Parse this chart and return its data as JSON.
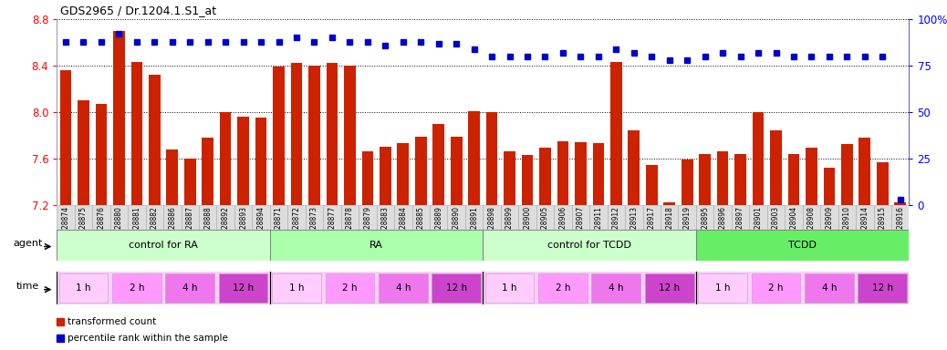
{
  "title": "GDS2965 / Dr.1204.1.S1_at",
  "sample_ids": [
    "GSM228874",
    "GSM228875",
    "GSM228876",
    "GSM228880",
    "GSM228881",
    "GSM228882",
    "GSM228886",
    "GSM228887",
    "GSM228888",
    "GSM228892",
    "GSM228893",
    "GSM228894",
    "GSM228871",
    "GSM228872",
    "GSM228873",
    "GSM228877",
    "GSM228878",
    "GSM228879",
    "GSM228883",
    "GSM228884",
    "GSM228885",
    "GSM228889",
    "GSM228890",
    "GSM228891",
    "GSM228898",
    "GSM228899",
    "GSM228900",
    "GSM228905",
    "GSM228906",
    "GSM228907",
    "GSM228911",
    "GSM228912",
    "GSM228913",
    "GSM228917",
    "GSM228918",
    "GSM228919",
    "GSM228895",
    "GSM228896",
    "GSM228897",
    "GSM228901",
    "GSM228903",
    "GSM228904",
    "GSM228908",
    "GSM228909",
    "GSM228910",
    "GSM228914",
    "GSM228915",
    "GSM228916"
  ],
  "bar_values": [
    8.36,
    8.1,
    8.07,
    8.7,
    8.43,
    8.32,
    7.68,
    7.6,
    7.78,
    8.0,
    7.96,
    7.95,
    8.39,
    8.42,
    8.4,
    8.42,
    8.4,
    7.66,
    7.7,
    7.73,
    7.79,
    7.9,
    7.79,
    8.01,
    8.0,
    7.66,
    7.63,
    7.69,
    7.75,
    7.74,
    7.73,
    8.43,
    7.84,
    7.54,
    7.22,
    7.59,
    7.64,
    7.66,
    7.64,
    8.0,
    7.84,
    7.64,
    7.69,
    7.52,
    7.72,
    7.78,
    7.57,
    7.22
  ],
  "percentile_values": [
    88,
    88,
    88,
    92,
    88,
    88,
    88,
    88,
    88,
    88,
    88,
    88,
    88,
    90,
    88,
    90,
    88,
    88,
    86,
    88,
    88,
    87,
    87,
    84,
    80,
    80,
    80,
    80,
    82,
    80,
    80,
    84,
    82,
    80,
    78,
    78,
    80,
    82,
    80,
    82,
    82,
    80,
    80,
    80,
    80,
    80,
    80,
    3
  ],
  "ylim_left": [
    7.2,
    8.8
  ],
  "ylim_right": [
    0,
    100
  ],
  "yticks_left": [
    7.2,
    7.6,
    8.0,
    8.4,
    8.8
  ],
  "yticks_right": [
    0,
    25,
    50,
    75,
    100
  ],
  "bar_color": "#cc2200",
  "dot_color": "#0000cc",
  "agent_groups": [
    {
      "label": "control for RA",
      "start": 0,
      "end": 12,
      "color": "#ccffcc"
    },
    {
      "label": "RA",
      "start": 12,
      "end": 24,
      "color": "#aaffaa"
    },
    {
      "label": "control for TCDD",
      "start": 24,
      "end": 36,
      "color": "#ccffcc"
    },
    {
      "label": "TCDD",
      "start": 36,
      "end": 48,
      "color": "#66ee66"
    }
  ],
  "time_groups": [
    {
      "label": "1 h",
      "start": 0,
      "end": 3
    },
    {
      "label": "2 h",
      "start": 3,
      "end": 6
    },
    {
      "label": "4 h",
      "start": 6,
      "end": 9
    },
    {
      "label": "12 h",
      "start": 9,
      "end": 12
    },
    {
      "label": "1 h",
      "start": 12,
      "end": 15
    },
    {
      "label": "2 h",
      "start": 15,
      "end": 18
    },
    {
      "label": "4 h",
      "start": 18,
      "end": 21
    },
    {
      "label": "12 h",
      "start": 21,
      "end": 24
    },
    {
      "label": "1 h",
      "start": 24,
      "end": 27
    },
    {
      "label": "2 h",
      "start": 27,
      "end": 30
    },
    {
      "label": "4 h",
      "start": 30,
      "end": 33
    },
    {
      "label": "12 h",
      "start": 33,
      "end": 36
    },
    {
      "label": "1 h",
      "start": 36,
      "end": 39
    },
    {
      "label": "2 h",
      "start": 39,
      "end": 42
    },
    {
      "label": "4 h",
      "start": 42,
      "end": 45
    },
    {
      "label": "12 h",
      "start": 45,
      "end": 48
    }
  ],
  "time_colors": {
    "1 h": "#ffccff",
    "2 h": "#ff99ff",
    "4 h": "#ee77ee",
    "12 h": "#cc44cc"
  },
  "legend_bar_label": "transformed count",
  "legend_dot_label": "percentile rank within the sample",
  "chart_bg": "#ffffff",
  "xtick_bg": "#dddddd"
}
